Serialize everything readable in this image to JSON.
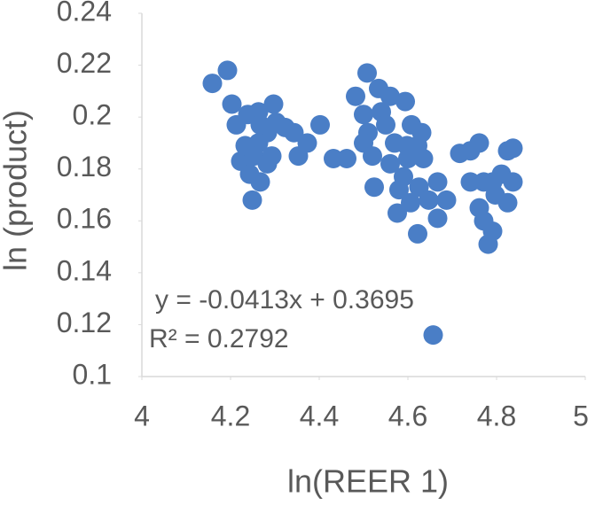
{
  "chart_data": {
    "type": "scatter",
    "x_label": "ln(REER 1)",
    "y_label": "ln (product)",
    "equation": "y = -0.0413x + 0.3695",
    "r_squared": "R² = 0.2792",
    "color": "#4a7ec6",
    "grid": false,
    "xlim": [
      4,
      5
    ],
    "xticks": [
      4,
      4.2,
      4.4,
      4.6,
      4.8,
      5
    ],
    "ylim": [
      0.1,
      0.24
    ],
    "yticks": [
      0.1,
      0.12,
      0.14,
      0.16,
      0.18,
      0.2,
      0.22,
      0.24
    ],
    "x": [
      4.159,
      4.193,
      4.203,
      4.213,
      4.223,
      4.249,
      4.239,
      4.263,
      4.297,
      4.283,
      4.263,
      4.253,
      4.243,
      4.267,
      4.283,
      4.293,
      4.233,
      4.303,
      4.323,
      4.343,
      4.353,
      4.373,
      4.402,
      4.432,
      4.462,
      4.508,
      4.482,
      4.5,
      4.51,
      4.5,
      4.52,
      4.524,
      4.54,
      4.56,
      4.55,
      4.57,
      4.56,
      4.576,
      4.59,
      4.6,
      4.594,
      4.608,
      4.622,
      4.631,
      4.625,
      4.606,
      4.622,
      4.635,
      4.58,
      4.647,
      4.667,
      4.667,
      4.687,
      4.657,
      4.717,
      4.741,
      4.761,
      4.741,
      4.771,
      4.761,
      4.771,
      4.781,
      4.791,
      4.797,
      4.811,
      4.825,
      4.837,
      4.837,
      4.825,
      4.791,
      4.598,
      4.534,
      4.267
    ],
    "values": [
      0.213,
      0.218,
      0.205,
      0.197,
      0.183,
      0.168,
      0.201,
      0.202,
      0.205,
      0.194,
      0.19,
      0.185,
      0.178,
      0.175,
      0.182,
      0.185,
      0.189,
      0.198,
      0.196,
      0.194,
      0.185,
      0.19,
      0.197,
      0.184,
      0.184,
      0.217,
      0.208,
      0.201,
      0.194,
      0.19,
      0.185,
      0.173,
      0.202,
      0.208,
      0.197,
      0.19,
      0.182,
      0.163,
      0.177,
      0.184,
      0.206,
      0.197,
      0.189,
      0.194,
      0.173,
      0.167,
      0.155,
      0.184,
      0.172,
      0.168,
      0.175,
      0.161,
      0.168,
      0.116,
      0.186,
      0.187,
      0.19,
      0.175,
      0.175,
      0.165,
      0.16,
      0.151,
      0.156,
      0.17,
      0.178,
      0.187,
      0.188,
      0.175,
      0.167,
      0.175,
      0.189,
      0.211,
      0.197
    ]
  }
}
